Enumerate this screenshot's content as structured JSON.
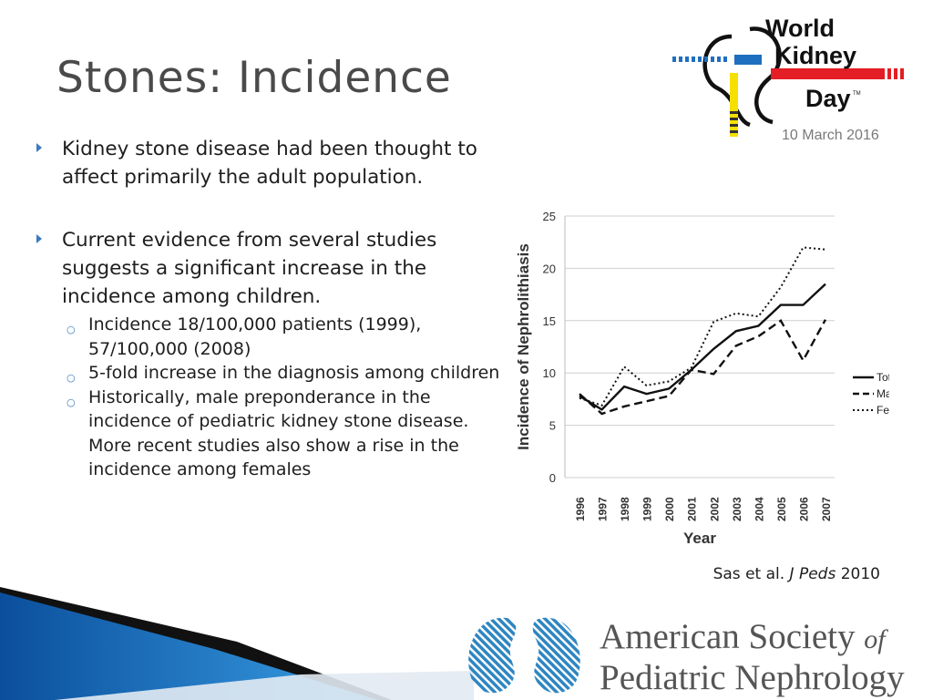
{
  "slide": {
    "title": "Stones: Incidence",
    "bullets": [
      {
        "text": "Kidney stone disease had been thought to affect primarily the adult population."
      },
      {
        "text": "Current evidence from several studies suggests a significant increase in the incidence among children."
      }
    ],
    "sub_bullets": [
      "Incidence 18/100,000 patients (1999), 57/100,000 (2008)",
      "5-fold increase in the diagnosis among children",
      "Historically, male preponderance in the incidence of pediatric kidney stone disease.  More recent studies also show a rise in the incidence among females"
    ],
    "citation": {
      "authors": "Sas et al.",
      "journal": "J Peds",
      "year": "2010"
    }
  },
  "logos": {
    "wkd": {
      "line1": "World",
      "line2": "Kidney",
      "line3": "Day",
      "tm": "TM",
      "date": "10 March 2016"
    },
    "aspn": {
      "line1_a": "American Society ",
      "line1_b": "of",
      "line2": "Pediatric Nephrology"
    }
  },
  "colors": {
    "accent": "#3a7bbf",
    "wkd_red": "#e31e24",
    "wkd_blue": "#1e6fc0",
    "wkd_yellow": "#f6e000"
  },
  "chart_data": {
    "type": "line",
    "title": "",
    "xlabel": "Year",
    "ylabel": "Incidence of Nephrolithiasis",
    "categories": [
      "1996",
      "1997",
      "1998",
      "1999",
      "2000",
      "2001",
      "2002",
      "2003",
      "2004",
      "2005",
      "2006",
      "2007"
    ],
    "ylim": [
      0,
      25
    ],
    "yticks": [
      0,
      5,
      10,
      15,
      20,
      25
    ],
    "grid": true,
    "legend_position": "right",
    "series": [
      {
        "name": "Total",
        "style": "solid",
        "values": [
          7.8,
          6.5,
          8.7,
          8.0,
          8.5,
          10.3,
          12.3,
          14.0,
          14.5,
          16.5,
          16.5,
          18.5
        ]
      },
      {
        "name": "Male",
        "style": "dashed",
        "values": [
          8.0,
          6.1,
          6.8,
          7.3,
          7.8,
          10.3,
          9.9,
          12.6,
          13.5,
          15.0,
          11.2,
          15.1
        ]
      },
      {
        "name": "Female",
        "style": "dotted",
        "values": [
          7.6,
          6.9,
          10.6,
          8.8,
          9.2,
          10.5,
          14.9,
          15.7,
          15.4,
          18.2,
          22.0,
          21.8
        ]
      }
    ]
  }
}
